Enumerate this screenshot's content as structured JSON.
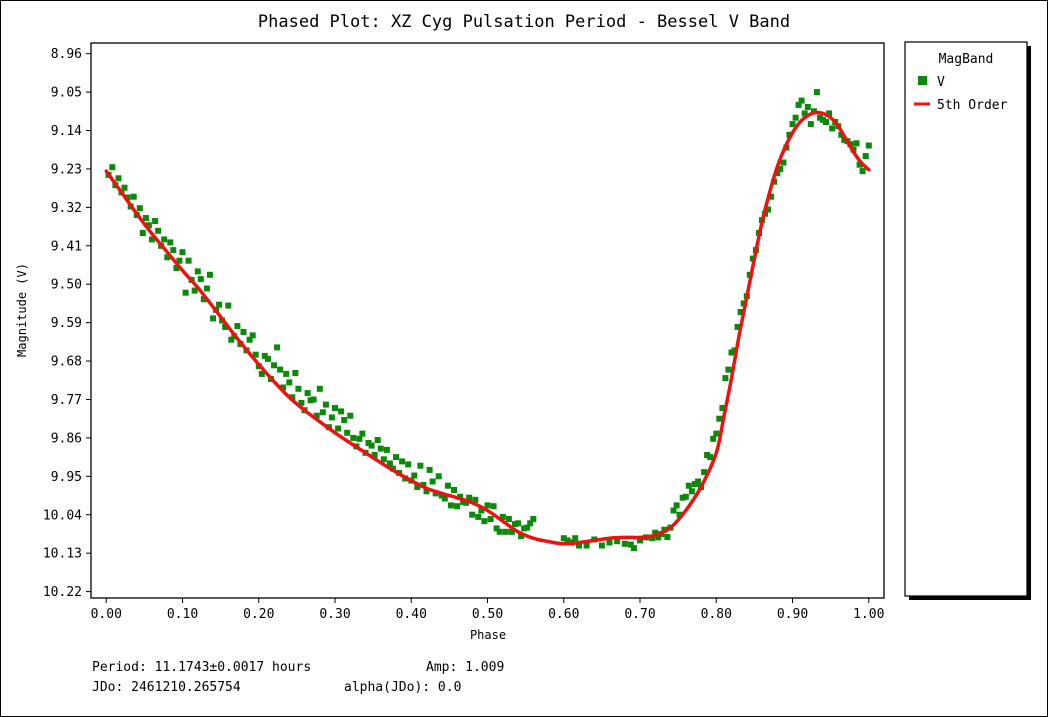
{
  "chart_data": {
    "type": "scatter",
    "title": "Phased Plot: XZ Cyg Pulsation Period - Bessel V Band",
    "xlabel": "Phase",
    "ylabel": "Magnitude (V)",
    "xlim": [
      -0.02,
      1.02
    ],
    "ylim": [
      8.935,
      10.235
    ],
    "y_inverted": true,
    "x_ticks": [
      "0.00",
      "0.10",
      "0.20",
      "0.30",
      "0.40",
      "0.50",
      "0.60",
      "0.70",
      "0.80",
      "0.90",
      "1.00"
    ],
    "y_ticks": [
      "8.96",
      "9.05",
      "9.14",
      "9.23",
      "9.32",
      "9.41",
      "9.50",
      "9.59",
      "9.68",
      "9.77",
      "9.86",
      "9.95",
      "10.04",
      "10.13",
      "10.22"
    ],
    "legend": {
      "title": "MagBand",
      "placement": "right",
      "entries": [
        {
          "label": "V",
          "marker": "square",
          "color": "#0a8a0a"
        },
        {
          "label": "5th Order",
          "marker": "line",
          "color": "#ee1111"
        }
      ]
    },
    "series": [
      {
        "name": "V",
        "color": "#0a8a0a",
        "points": [
          [
            0.003,
            9.244
          ],
          [
            0.008,
            9.226
          ],
          [
            0.012,
            9.268
          ],
          [
            0.016,
            9.252
          ],
          [
            0.02,
            9.285
          ],
          [
            0.024,
            9.274
          ],
          [
            0.028,
            9.297
          ],
          [
            0.032,
            9.318
          ],
          [
            0.036,
            9.295
          ],
          [
            0.04,
            9.338
          ],
          [
            0.044,
            9.322
          ],
          [
            0.048,
            9.38
          ],
          [
            0.052,
            9.345
          ],
          [
            0.056,
            9.362
          ],
          [
            0.06,
            9.395
          ],
          [
            0.064,
            9.352
          ],
          [
            0.068,
            9.375
          ],
          [
            0.072,
            9.41
          ],
          [
            0.076,
            9.395
          ],
          [
            0.08,
            9.437
          ],
          [
            0.084,
            9.402
          ],
          [
            0.088,
            9.42
          ],
          [
            0.092,
            9.462
          ],
          [
            0.096,
            9.445
          ],
          [
            0.1,
            9.425
          ],
          [
            0.104,
            9.52
          ],
          [
            0.108,
            9.445
          ],
          [
            0.112,
            9.49
          ],
          [
            0.116,
            9.515
          ],
          [
            0.12,
            9.47
          ],
          [
            0.124,
            9.488
          ],
          [
            0.128,
            9.535
          ],
          [
            0.132,
            9.51
          ],
          [
            0.136,
            9.478
          ],
          [
            0.14,
            9.58
          ],
          [
            0.144,
            9.56
          ],
          [
            0.148,
            9.548
          ],
          [
            0.152,
            9.585
          ],
          [
            0.156,
            9.6
          ],
          [
            0.16,
            9.55
          ],
          [
            0.164,
            9.63
          ],
          [
            0.168,
            9.622
          ],
          [
            0.172,
            9.598
          ],
          [
            0.176,
            9.64
          ],
          [
            0.18,
            9.612
          ],
          [
            0.184,
            9.655
          ],
          [
            0.188,
            9.63
          ],
          [
            0.192,
            9.62
          ],
          [
            0.196,
            9.665
          ],
          [
            0.2,
            9.692
          ],
          [
            0.204,
            9.71
          ],
          [
            0.208,
            9.668
          ],
          [
            0.212,
            9.675
          ],
          [
            0.216,
            9.722
          ],
          [
            0.22,
            9.69
          ],
          [
            0.224,
            9.648
          ],
          [
            0.228,
            9.7
          ],
          [
            0.232,
            9.742
          ],
          [
            0.236,
            9.71
          ],
          [
            0.24,
            9.73
          ],
          [
            0.244,
            9.765
          ],
          [
            0.248,
            9.708
          ],
          [
            0.252,
            9.745
          ],
          [
            0.256,
            9.778
          ],
          [
            0.26,
            9.795
          ],
          [
            0.264,
            9.755
          ],
          [
            0.268,
            9.772
          ],
          [
            0.272,
            9.77
          ],
          [
            0.276,
            9.808
          ],
          [
            0.28,
            9.745
          ],
          [
            0.284,
            9.8
          ],
          [
            0.288,
            9.782
          ],
          [
            0.292,
            9.835
          ],
          [
            0.296,
            9.812
          ],
          [
            0.3,
            9.79
          ],
          [
            0.304,
            9.838
          ],
          [
            0.308,
            9.798
          ],
          [
            0.312,
            9.818
          ],
          [
            0.316,
            9.848
          ],
          [
            0.32,
            9.808
          ],
          [
            0.324,
            9.86
          ],
          [
            0.328,
            9.88
          ],
          [
            0.332,
            9.862
          ],
          [
            0.336,
            9.85
          ],
          [
            0.34,
            9.895
          ],
          [
            0.344,
            9.872
          ],
          [
            0.348,
            9.878
          ],
          [
            0.352,
            9.9
          ],
          [
            0.356,
            9.865
          ],
          [
            0.36,
            9.885
          ],
          [
            0.364,
            9.91
          ],
          [
            0.368,
            9.888
          ],
          [
            0.372,
            9.92
          ],
          [
            0.376,
            9.932
          ],
          [
            0.38,
            9.905
          ],
          [
            0.384,
            9.942
          ],
          [
            0.388,
            9.915
          ],
          [
            0.392,
            9.955
          ],
          [
            0.396,
            9.922
          ],
          [
            0.4,
            9.96
          ],
          [
            0.404,
            9.948
          ],
          [
            0.408,
            9.975
          ],
          [
            0.412,
            9.925
          ],
          [
            0.416,
            9.97
          ],
          [
            0.42,
            9.985
          ],
          [
            0.424,
            9.935
          ],
          [
            0.428,
            9.962
          ],
          [
            0.432,
            9.99
          ],
          [
            0.436,
            9.95
          ],
          [
            0.44,
            9.995
          ],
          [
            0.444,
            10.002
          ],
          [
            0.448,
            9.972
          ],
          [
            0.452,
            10.018
          ],
          [
            0.456,
            9.982
          ],
          [
            0.46,
            10.02
          ],
          [
            0.464,
            9.998
          ],
          [
            0.468,
            10.01
          ],
          [
            0.472,
            10.012
          ],
          [
            0.476,
            10.0
          ],
          [
            0.48,
            10.04
          ],
          [
            0.484,
            10.005
          ],
          [
            0.488,
            10.045
          ],
          [
            0.492,
            10.03
          ],
          [
            0.496,
            10.055
          ],
          [
            0.5,
            10.018
          ],
          [
            0.504,
            10.05
          ],
          [
            0.508,
            10.02
          ],
          [
            0.512,
            10.072
          ],
          [
            0.516,
            10.08
          ],
          [
            0.52,
            10.045
          ],
          [
            0.524,
            10.08
          ],
          [
            0.528,
            10.05
          ],
          [
            0.532,
            10.08
          ],
          [
            0.536,
            10.062
          ],
          [
            0.54,
            10.06
          ],
          [
            0.544,
            10.09
          ],
          [
            0.548,
            10.072
          ],
          [
            0.552,
            10.07
          ],
          [
            0.556,
            10.06
          ],
          [
            0.56,
            10.05
          ],
          [
            0.6,
            10.095
          ],
          [
            0.605,
            10.1
          ],
          [
            0.61,
            10.105
          ],
          [
            0.615,
            10.095
          ],
          [
            0.62,
            10.112
          ],
          [
            0.63,
            10.112
          ],
          [
            0.64,
            10.098
          ],
          [
            0.65,
            10.112
          ],
          [
            0.66,
            10.105
          ],
          [
            0.67,
            10.102
          ],
          [
            0.68,
            10.108
          ],
          [
            0.688,
            10.11
          ],
          [
            0.692,
            10.118
          ],
          [
            0.7,
            10.1
          ],
          [
            0.708,
            10.093
          ],
          [
            0.716,
            10.095
          ],
          [
            0.72,
            10.082
          ],
          [
            0.724,
            10.093
          ],
          [
            0.728,
            10.085
          ],
          [
            0.732,
            10.075
          ],
          [
            0.736,
            10.092
          ],
          [
            0.74,
            10.07
          ],
          [
            0.744,
            10.03
          ],
          [
            0.748,
            10.018
          ],
          [
            0.752,
            10.04
          ],
          [
            0.756,
            10.0
          ],
          [
            0.76,
            9.998
          ],
          [
            0.764,
            9.972
          ],
          [
            0.768,
            9.985
          ],
          [
            0.772,
            9.968
          ],
          [
            0.776,
            9.962
          ],
          [
            0.78,
            9.975
          ],
          [
            0.784,
            9.94
          ],
          [
            0.788,
            9.9
          ],
          [
            0.792,
            9.905
          ],
          [
            0.796,
            9.862
          ],
          [
            0.8,
            9.85
          ],
          [
            0.804,
            9.815
          ],
          [
            0.808,
            9.79
          ],
          [
            0.812,
            9.72
          ],
          [
            0.816,
            9.7
          ],
          [
            0.82,
            9.66
          ],
          [
            0.824,
            9.655
          ],
          [
            0.828,
            9.6
          ],
          [
            0.832,
            9.565
          ],
          [
            0.836,
            9.545
          ],
          [
            0.84,
            9.528
          ],
          [
            0.844,
            9.478
          ],
          [
            0.848,
            9.44
          ],
          [
            0.852,
            9.42
          ],
          [
            0.856,
            9.38
          ],
          [
            0.86,
            9.35
          ],
          [
            0.864,
            9.335
          ],
          [
            0.868,
            9.325
          ],
          [
            0.872,
            9.295
          ],
          [
            0.876,
            9.26
          ],
          [
            0.88,
            9.24
          ],
          [
            0.884,
            9.23
          ],
          [
            0.888,
            9.215
          ],
          [
            0.892,
            9.18
          ],
          [
            0.896,
            9.15
          ],
          [
            0.9,
            9.125
          ],
          [
            0.904,
            9.11
          ],
          [
            0.908,
            9.08
          ],
          [
            0.912,
            9.07
          ],
          [
            0.916,
            9.1
          ],
          [
            0.92,
            9.085
          ],
          [
            0.924,
            9.125
          ],
          [
            0.928,
            9.095
          ],
          [
            0.932,
            9.05
          ],
          [
            0.936,
            9.11
          ],
          [
            0.94,
            9.115
          ],
          [
            0.944,
            9.12
          ],
          [
            0.948,
            9.1
          ],
          [
            0.952,
            9.135
          ],
          [
            0.956,
            9.12
          ],
          [
            0.96,
            9.13
          ],
          [
            0.964,
            9.15
          ],
          [
            0.968,
            9.162
          ],
          [
            0.972,
            9.165
          ],
          [
            0.976,
            9.172
          ],
          [
            0.98,
            9.185
          ],
          [
            0.984,
            9.17
          ],
          [
            0.988,
            9.22
          ],
          [
            0.992,
            9.235
          ],
          [
            0.996,
            9.2
          ],
          [
            1.0,
            9.175
          ]
        ]
      },
      {
        "name": "5th Order",
        "color": "#ee1111",
        "points": [
          [
            0.0,
            9.235
          ],
          [
            0.02,
            9.285
          ],
          [
            0.04,
            9.335
          ],
          [
            0.06,
            9.382
          ],
          [
            0.08,
            9.425
          ],
          [
            0.1,
            9.468
          ],
          [
            0.12,
            9.508
          ],
          [
            0.14,
            9.553
          ],
          [
            0.16,
            9.6
          ],
          [
            0.18,
            9.645
          ],
          [
            0.2,
            9.688
          ],
          [
            0.22,
            9.728
          ],
          [
            0.24,
            9.765
          ],
          [
            0.26,
            9.795
          ],
          [
            0.28,
            9.822
          ],
          [
            0.3,
            9.848
          ],
          [
            0.32,
            9.872
          ],
          [
            0.34,
            9.895
          ],
          [
            0.36,
            9.918
          ],
          [
            0.38,
            9.94
          ],
          [
            0.4,
            9.96
          ],
          [
            0.42,
            9.978
          ],
          [
            0.44,
            9.99
          ],
          [
            0.46,
            10.0
          ],
          [
            0.48,
            10.012
          ],
          [
            0.5,
            10.03
          ],
          [
            0.52,
            10.055
          ],
          [
            0.54,
            10.08
          ],
          [
            0.56,
            10.095
          ],
          [
            0.58,
            10.103
          ],
          [
            0.6,
            10.108
          ],
          [
            0.62,
            10.105
          ],
          [
            0.64,
            10.1
          ],
          [
            0.66,
            10.095
          ],
          [
            0.68,
            10.093
          ],
          [
            0.7,
            10.093
          ],
          [
            0.72,
            10.088
          ],
          [
            0.74,
            10.07
          ],
          [
            0.76,
            10.03
          ],
          [
            0.78,
            9.975
          ],
          [
            0.8,
            9.895
          ],
          [
            0.81,
            9.81
          ],
          [
            0.82,
            9.72
          ],
          [
            0.83,
            9.62
          ],
          [
            0.84,
            9.53
          ],
          [
            0.85,
            9.44
          ],
          [
            0.86,
            9.355
          ],
          [
            0.87,
            9.285
          ],
          [
            0.88,
            9.225
          ],
          [
            0.89,
            9.18
          ],
          [
            0.9,
            9.145
          ],
          [
            0.91,
            9.12
          ],
          [
            0.92,
            9.105
          ],
          [
            0.93,
            9.098
          ],
          [
            0.94,
            9.1
          ],
          [
            0.95,
            9.11
          ],
          [
            0.96,
            9.13
          ],
          [
            0.97,
            9.16
          ],
          [
            0.98,
            9.19
          ],
          [
            0.99,
            9.215
          ],
          [
            1.0,
            9.232
          ]
        ]
      }
    ]
  },
  "info": {
    "period": "Period: 11.1743±0.0017 hours",
    "amp": "Amp: 1.009",
    "jdo": "JDo: 2461210.265754",
    "alpha": "alpha(JDo): 0.0"
  }
}
